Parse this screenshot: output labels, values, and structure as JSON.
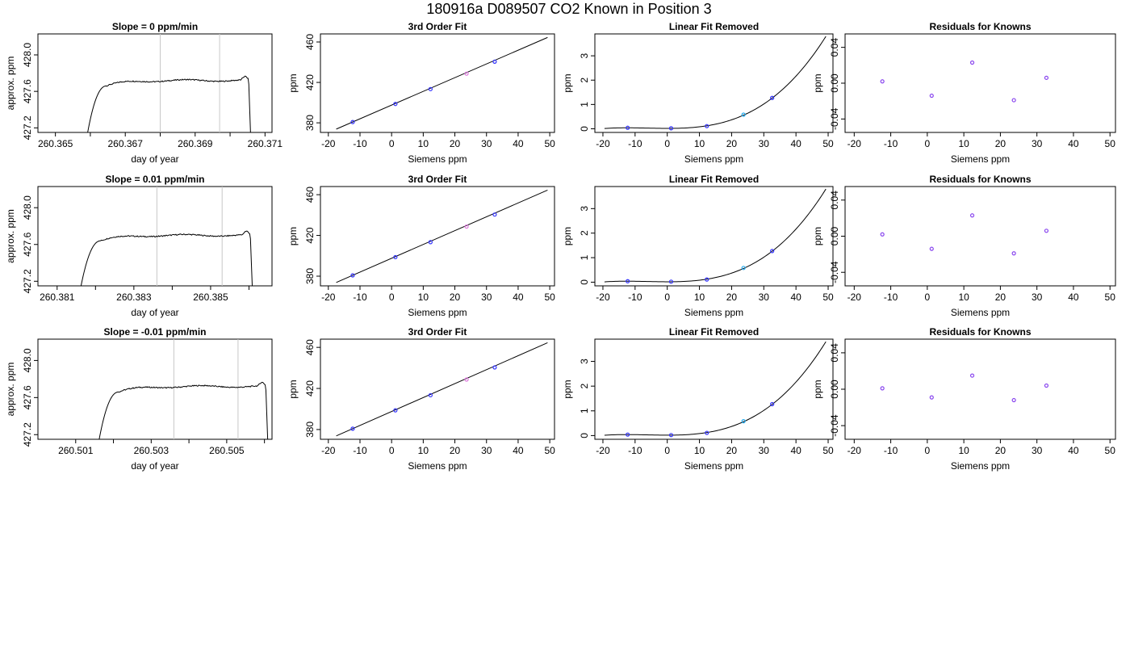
{
  "figure": {
    "title": "180916a     D089507   CO2 Known in Position  3"
  },
  "chart_data": [
    {
      "row": 1,
      "col": 1,
      "type": "line",
      "title": "Slope =  0  ppm/min",
      "xlabel": "day of year",
      "ylabel": "approx. ppm",
      "xlim": [
        260.3645,
        260.3712
      ],
      "ylim": [
        427.15,
        428.23
      ],
      "xticks": [
        260.365,
        260.366,
        260.367,
        260.368,
        260.369,
        260.37,
        260.371
      ],
      "xticklabels": [
        "260.365",
        "",
        "260.367",
        "",
        "260.369",
        "",
        "260.371"
      ],
      "yticks": [
        427.2,
        427.6,
        428.0
      ],
      "yticklabels": [
        "427.2",
        "427.6",
        "428.0"
      ],
      "vlines": [
        260.368,
        260.3697
      ],
      "series": [
        {
          "x": [
            260.366,
            260.3699,
            260.3705
          ],
          "y": [
            427.2,
            427.72,
            427.2
          ],
          "x_start": 260.3659,
          "x_end": 260.3706,
          "plateau": 427.72
        }
      ]
    },
    {
      "row": 1,
      "col": 2,
      "type": "scatter",
      "title": "3rd Order Fit",
      "xlabel": "Siemens ppm",
      "ylabel": "ppm",
      "xlim": [
        -22.5,
        51.5
      ],
      "ylim": [
        370.5,
        468
      ],
      "xticks": [
        -20,
        -10,
        0,
        10,
        20,
        30,
        40,
        50
      ],
      "yticks": [
        380,
        420,
        460
      ],
      "fit": {
        "type": "line",
        "x": [
          -17.5,
          49.3
        ],
        "y": [
          373.8,
          464.5
        ]
      },
      "points": [
        {
          "x": -12.3,
          "y": 380.8,
          "color": "#3333ff"
        },
        {
          "x": 1.2,
          "y": 398.7,
          "color": "#3333ff"
        },
        {
          "x": 12.3,
          "y": 413.4,
          "color": "#3333ff"
        },
        {
          "x": 23.7,
          "y": 428.7,
          "color": "#dd77dd"
        },
        {
          "x": 32.6,
          "y": 440.5,
          "color": "#3333ff"
        }
      ]
    },
    {
      "row": 1,
      "col": 3,
      "type": "scatter",
      "title": "Linear Fit Removed",
      "xlabel": "Siemens ppm",
      "ylabel": "ppm",
      "xlim": [
        -22.5,
        51.5
      ],
      "ylim": [
        -0.15,
        3.9
      ],
      "xticks": [
        -20,
        -10,
        0,
        10,
        20,
        30,
        40,
        50
      ],
      "yticks": [
        0,
        1,
        2,
        3
      ],
      "curve": {
        "type": "cubic",
        "x_range": [
          -19.5,
          49.3
        ],
        "anchors_x": [
          -12.3,
          1.2,
          12.3,
          23.7,
          32.6,
          49.3
        ],
        "anchors_y": [
          0.04,
          0.02,
          0.11,
          0.58,
          1.25,
          3.8
        ]
      },
      "points": [
        {
          "x": -12.3,
          "y": 0.04,
          "color": "#3333ff"
        },
        {
          "x": 1.2,
          "y": 0.02,
          "color": "#3333ff"
        },
        {
          "x": 12.3,
          "y": 0.11,
          "color": "#3333ff"
        },
        {
          "x": 23.7,
          "y": 0.58,
          "color": "#22aaee"
        },
        {
          "x": 32.6,
          "y": 1.27,
          "color": "#3333ff"
        }
      ]
    },
    {
      "row": 1,
      "col": 4,
      "type": "scatter",
      "title": "Residuals for Knowns",
      "xlabel": "Siemens ppm",
      "ylabel": "ppm",
      "xlim": [
        -22.5,
        51.5
      ],
      "ylim": [
        -0.055,
        0.055
      ],
      "xticks": [
        -20,
        -10,
        0,
        10,
        20,
        30,
        40,
        50
      ],
      "yticks": [
        -0.04,
        0.0,
        0.04
      ],
      "yticklabels": [
        "-0.04",
        "0.00",
        "0.04"
      ],
      "points": [
        {
          "x": -12.3,
          "y": 0.002,
          "color": "#8844ee"
        },
        {
          "x": 1.2,
          "y": -0.014,
          "color": "#8844ee"
        },
        {
          "x": 12.3,
          "y": 0.023,
          "color": "#8844ee"
        },
        {
          "x": 23.7,
          "y": -0.019,
          "color": "#8844ee"
        },
        {
          "x": 32.6,
          "y": 0.006,
          "color": "#8844ee"
        }
      ]
    },
    {
      "row": 2,
      "col": 1,
      "type": "line",
      "title": "Slope =  0.01  ppm/min",
      "xlabel": "day of year",
      "ylabel": "approx. ppm",
      "xlim": [
        260.3805,
        260.3866
      ],
      "ylim": [
        427.15,
        428.23
      ],
      "xticks": [
        260.381,
        260.382,
        260.383,
        260.384,
        260.385,
        260.386
      ],
      "xticklabels": [
        "260.381",
        "",
        "260.383",
        "",
        "260.385",
        ""
      ],
      "yticks": [
        427.2,
        427.6,
        428.0
      ],
      "yticklabels": [
        "427.2",
        "427.6",
        "428.0"
      ],
      "vlines": [
        260.3836,
        260.3853
      ],
      "series": [
        {
          "x": [
            260.3817,
            260.3859,
            260.3861
          ],
          "y": [
            427.2,
            427.7,
            427.2
          ],
          "x_start": 260.3816,
          "x_end": 260.3861,
          "plateau": 427.7
        }
      ]
    },
    {
      "row": 2,
      "col": 2,
      "type": "scatter",
      "title": "3rd Order Fit",
      "xlabel": "Siemens ppm",
      "ylabel": "ppm",
      "xlim": [
        -22.5,
        51.5
      ],
      "ylim": [
        370.5,
        468
      ],
      "xticks": [
        -20,
        -10,
        0,
        10,
        20,
        30,
        40,
        50
      ],
      "yticks": [
        380,
        420,
        460
      ],
      "fit": {
        "type": "line",
        "x": [
          -17.5,
          49.3
        ],
        "y": [
          373.8,
          464.5
        ]
      },
      "points": [
        {
          "x": -12.3,
          "y": 380.8,
          "color": "#3333ff"
        },
        {
          "x": 1.2,
          "y": 398.7,
          "color": "#3333ff"
        },
        {
          "x": 12.3,
          "y": 413.4,
          "color": "#3333ff"
        },
        {
          "x": 23.7,
          "y": 428.7,
          "color": "#dd77dd"
        },
        {
          "x": 32.6,
          "y": 440.5,
          "color": "#3333ff"
        }
      ]
    },
    {
      "row": 2,
      "col": 3,
      "type": "scatter",
      "title": "Linear Fit Removed",
      "xlabel": "Siemens ppm",
      "ylabel": "ppm",
      "xlim": [
        -22.5,
        51.5
      ],
      "ylim": [
        -0.15,
        3.9
      ],
      "xticks": [
        -20,
        -10,
        0,
        10,
        20,
        30,
        40,
        50
      ],
      "yticks": [
        0,
        1,
        2,
        3
      ],
      "curve": {
        "type": "cubic",
        "x_range": [
          -19.5,
          49.3
        ],
        "anchors_x": [
          -12.3,
          1.2,
          12.3,
          23.7,
          32.6,
          49.3
        ],
        "anchors_y": [
          0.04,
          0.02,
          0.11,
          0.58,
          1.25,
          3.8
        ]
      },
      "points": [
        {
          "x": -12.3,
          "y": 0.04,
          "color": "#3333ff"
        },
        {
          "x": 1.2,
          "y": 0.02,
          "color": "#3333ff"
        },
        {
          "x": 12.3,
          "y": 0.11,
          "color": "#3333ff"
        },
        {
          "x": 23.7,
          "y": 0.58,
          "color": "#22aaee"
        },
        {
          "x": 32.6,
          "y": 1.27,
          "color": "#3333ff"
        }
      ]
    },
    {
      "row": 2,
      "col": 4,
      "type": "scatter",
      "title": "Residuals for Knowns",
      "xlabel": "Siemens ppm",
      "ylabel": "ppm",
      "xlim": [
        -22.5,
        51.5
      ],
      "ylim": [
        -0.055,
        0.055
      ],
      "xticks": [
        -20,
        -10,
        0,
        10,
        20,
        30,
        40,
        50
      ],
      "yticks": [
        -0.04,
        0.0,
        0.04
      ],
      "yticklabels": [
        "-0.04",
        "0.00",
        "0.04"
      ],
      "points": [
        {
          "x": -12.3,
          "y": 0.002,
          "color": "#8844ee"
        },
        {
          "x": 1.2,
          "y": -0.014,
          "color": "#8844ee"
        },
        {
          "x": 12.3,
          "y": 0.023,
          "color": "#8844ee"
        },
        {
          "x": 23.7,
          "y": -0.019,
          "color": "#8844ee"
        },
        {
          "x": 32.6,
          "y": 0.006,
          "color": "#8844ee"
        }
      ]
    },
    {
      "row": 3,
      "col": 1,
      "type": "line",
      "title": "Slope =  -0.01  ppm/min",
      "xlabel": "day of year",
      "ylabel": "approx. ppm",
      "xlim": [
        260.5,
        260.5062
      ],
      "ylim": [
        427.15,
        428.23
      ],
      "xticks": [
        260.501,
        260.502,
        260.503,
        260.504,
        260.505,
        260.506
      ],
      "xticklabels": [
        "260.501",
        "",
        "260.503",
        "",
        "260.505",
        ""
      ],
      "yticks": [
        427.2,
        427.6,
        428.0
      ],
      "yticklabels": [
        "427.2",
        "427.6",
        "428.0"
      ],
      "vlines": [
        260.5036,
        260.5053
      ],
      "series": [
        {
          "x": [
            260.5017,
            260.5059,
            260.5061
          ],
          "y": [
            427.2,
            427.72,
            427.2
          ],
          "x_start": 260.5016,
          "x_end": 260.5061,
          "plateau": 427.72
        }
      ]
    },
    {
      "row": 3,
      "col": 2,
      "type": "scatter",
      "title": "3rd Order Fit",
      "xlabel": "Siemens ppm",
      "ylabel": "ppm",
      "xlim": [
        -22.5,
        51.5
      ],
      "ylim": [
        370.5,
        468
      ],
      "xticks": [
        -20,
        -10,
        0,
        10,
        20,
        30,
        40,
        50
      ],
      "yticks": [
        380,
        420,
        460
      ],
      "fit": {
        "type": "line",
        "x": [
          -17.5,
          49.3
        ],
        "y": [
          373.8,
          464.5
        ]
      },
      "points": [
        {
          "x": -12.3,
          "y": 380.8,
          "color": "#3333ff"
        },
        {
          "x": 1.2,
          "y": 398.7,
          "color": "#3333ff"
        },
        {
          "x": 12.3,
          "y": 413.4,
          "color": "#3333ff"
        },
        {
          "x": 23.7,
          "y": 428.7,
          "color": "#dd77dd"
        },
        {
          "x": 32.6,
          "y": 440.5,
          "color": "#3333ff"
        }
      ]
    },
    {
      "row": 3,
      "col": 3,
      "type": "scatter",
      "title": "Linear Fit Removed",
      "xlabel": "Siemens ppm",
      "ylabel": "ppm",
      "xlim": [
        -22.5,
        51.5
      ],
      "ylim": [
        -0.15,
        3.9
      ],
      "xticks": [
        -20,
        -10,
        0,
        10,
        20,
        30,
        40,
        50
      ],
      "yticks": [
        0,
        1,
        2,
        3
      ],
      "curve": {
        "type": "cubic",
        "x_range": [
          -19.5,
          49.3
        ],
        "anchors_x": [
          -12.3,
          1.2,
          12.3,
          23.7,
          32.6,
          49.3
        ],
        "anchors_y": [
          0.04,
          0.02,
          0.11,
          0.58,
          1.25,
          3.8
        ]
      },
      "points": [
        {
          "x": -12.3,
          "y": 0.04,
          "color": "#3333ff"
        },
        {
          "x": 1.2,
          "y": 0.02,
          "color": "#3333ff"
        },
        {
          "x": 12.3,
          "y": 0.11,
          "color": "#3333ff"
        },
        {
          "x": 23.7,
          "y": 0.58,
          "color": "#22aaee"
        },
        {
          "x": 32.6,
          "y": 1.27,
          "color": "#3333ff"
        }
      ]
    },
    {
      "row": 3,
      "col": 4,
      "type": "scatter",
      "title": "Residuals for Knowns",
      "xlabel": "Siemens ppm",
      "ylabel": "ppm",
      "xlim": [
        -22.5,
        51.5
      ],
      "ylim": [
        -0.055,
        0.055
      ],
      "xticks": [
        -20,
        -10,
        0,
        10,
        20,
        30,
        40,
        50
      ],
      "yticks": [
        -0.04,
        0.0,
        0.04
      ],
      "yticklabels": [
        "-0.04",
        "0.00",
        "0.04"
      ],
      "points": [
        {
          "x": -12.3,
          "y": 0.001,
          "color": "#8844ee"
        },
        {
          "x": 1.2,
          "y": -0.009,
          "color": "#8844ee"
        },
        {
          "x": 12.3,
          "y": 0.015,
          "color": "#8844ee"
        },
        {
          "x": 23.7,
          "y": -0.012,
          "color": "#8844ee"
        },
        {
          "x": 32.6,
          "y": 0.004,
          "color": "#8844ee"
        }
      ]
    }
  ],
  "colors": {
    "axis": "#000000",
    "vline": "#c8c8c8",
    "line": "#000000"
  }
}
